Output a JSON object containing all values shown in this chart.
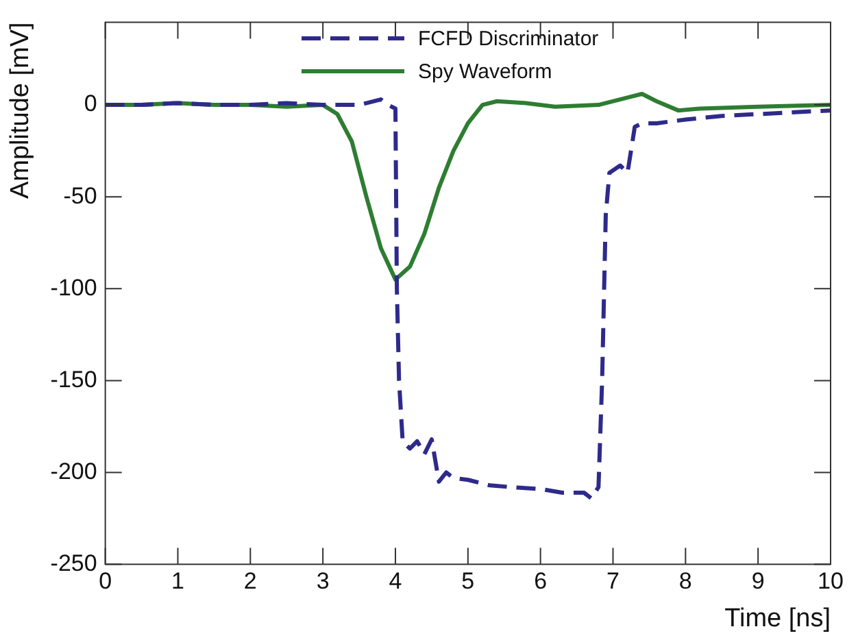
{
  "chart_data": {
    "type": "line",
    "xlabel": "Time [ns]",
    "ylabel": "Amplitude [mV]",
    "xlim": [
      0,
      10
    ],
    "xticks": [
      0,
      1,
      2,
      3,
      4,
      5,
      6,
      7,
      8,
      9,
      10
    ],
    "ylim": [
      -250,
      45
    ],
    "yticks": [
      -250,
      -200,
      -150,
      -100,
      -50,
      0
    ],
    "grid": false,
    "legend": "top",
    "marker": "none",
    "series": [
      {
        "name": "FCFD Discriminator",
        "color": "#2e2a8c",
        "line_style": "dashed",
        "x": [
          0,
          0.5,
          1,
          1.5,
          2,
          2.5,
          3,
          3.5,
          3.8,
          3.9,
          4.0,
          4.02,
          4.05,
          4.1,
          4.2,
          4.3,
          4.4,
          4.5,
          4.6,
          4.7,
          4.8,
          5.0,
          5.3,
          5.6,
          6.0,
          6.3,
          6.6,
          6.7,
          6.8,
          6.85,
          6.9,
          6.95,
          7.1,
          7.2,
          7.3,
          7.4,
          7.6,
          8,
          8.5,
          9,
          10
        ],
        "values": [
          0,
          0,
          1,
          0,
          0,
          1,
          0,
          0,
          3,
          0,
          -2,
          -100,
          -150,
          -183,
          -187,
          -183,
          -190,
          -182,
          -205,
          -200,
          -203,
          -204,
          -207,
          -208,
          -209,
          -211,
          -211,
          -214,
          -208,
          -150,
          -60,
          -37,
          -33,
          -37,
          -12,
          -10,
          -10,
          -8,
          -6,
          -5,
          -3
        ]
      },
      {
        "name": "Spy Waveform",
        "color": "#2e7d32",
        "line_style": "solid",
        "x": [
          0,
          0.5,
          1,
          1.5,
          2,
          2.5,
          3,
          3.2,
          3.4,
          3.6,
          3.8,
          4.0,
          4.2,
          4.4,
          4.6,
          4.8,
          5.0,
          5.2,
          5.4,
          5.8,
          6.2,
          6.8,
          7.2,
          7.4,
          7.6,
          7.9,
          8.2,
          9,
          10
        ],
        "values": [
          0,
          0,
          1,
          0,
          0,
          -1,
          0,
          -5,
          -20,
          -50,
          -78,
          -95,
          -88,
          -70,
          -45,
          -25,
          -10,
          0,
          2,
          1,
          -1,
          0,
          4,
          6,
          2,
          -3,
          -2,
          -1,
          0
        ]
      }
    ]
  }
}
